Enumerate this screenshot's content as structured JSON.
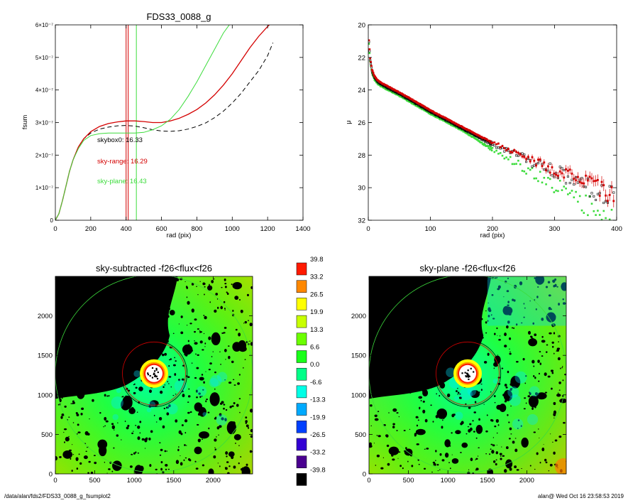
{
  "chart_data": [
    {
      "type": "line",
      "title": "FDS33_0088_g",
      "xlabel": "rad (pix)",
      "ylabel": "fsum",
      "xlim": [
        0,
        1400
      ],
      "ylim": [
        0,
        6e-07
      ],
      "xticks": [
        0,
        200,
        400,
        600,
        800,
        1000,
        1200,
        1400
      ],
      "xtick_labels": [
        "0",
        "200",
        "400",
        "600",
        "800",
        "1000",
        "1200",
        "1400"
      ],
      "yticks": [
        0,
        1e-07,
        2e-07,
        3e-07,
        4e-07,
        5e-07,
        6e-07
      ],
      "ytick_labels": [
        "0",
        "1×10⁻⁷",
        "2×10⁻⁷",
        "3×10⁻⁷",
        "4×10⁻⁷",
        "5×10⁻⁷",
        "6×10⁻⁷"
      ],
      "series": [
        {
          "color": "#000000",
          "dash": true,
          "x": [
            0,
            20,
            40,
            60,
            80,
            100,
            130,
            160,
            200,
            250,
            300,
            350,
            400,
            450,
            500,
            550,
            600,
            650,
            700,
            750,
            800,
            850,
            900,
            950,
            1000,
            1050,
            1100,
            1150,
            1200,
            1230
          ],
          "y": [
            0,
            2e-08,
            6e-08,
            1.05e-07,
            1.5e-07,
            1.85e-07,
            2.25e-07,
            2.5e-07,
            2.68e-07,
            2.8e-07,
            2.86e-07,
            2.9e-07,
            2.91e-07,
            2.89e-07,
            2.84e-07,
            2.78e-07,
            2.74e-07,
            2.73e-07,
            2.75e-07,
            2.8e-07,
            2.88e-07,
            2.99e-07,
            3.15e-07,
            3.35e-07,
            3.6e-07,
            3.9e-07,
            4.25e-07,
            4.6e-07,
            5.05e-07,
            5.45e-07
          ]
        },
        {
          "color": "#d40000",
          "dash": false,
          "x": [
            0,
            20,
            40,
            60,
            80,
            100,
            130,
            160,
            200,
            250,
            300,
            350,
            400,
            450,
            500,
            550,
            600,
            650,
            700,
            750,
            800,
            850,
            900,
            950,
            1000,
            1050,
            1100,
            1150,
            1200,
            1220
          ],
          "y": [
            0,
            2e-08,
            6e-08,
            1.05e-07,
            1.5e-07,
            1.85e-07,
            2.25e-07,
            2.5e-07,
            2.72e-07,
            2.88e-07,
            2.97e-07,
            3.02e-07,
            3.05e-07,
            3.05e-07,
            3.03e-07,
            3e-07,
            3e-07,
            3.05e-07,
            3.13e-07,
            3.25e-07,
            3.4e-07,
            3.6e-07,
            3.85e-07,
            4.15e-07,
            4.5e-07,
            4.9e-07,
            5.3e-07,
            5.65e-07,
            5.95e-07,
            6.05e-07
          ]
        },
        {
          "color": "#3cdc3c",
          "dash": false,
          "x": [
            0,
            20,
            40,
            60,
            80,
            100,
            130,
            160,
            200,
            250,
            300,
            350,
            400,
            450,
            500,
            550,
            600,
            650,
            700,
            750,
            800,
            850,
            900,
            950,
            990
          ],
          "y": [
            0,
            2e-08,
            6e-08,
            1.05e-07,
            1.5e-07,
            1.85e-07,
            2.2e-07,
            2.45e-07,
            2.6e-07,
            2.66e-07,
            2.68e-07,
            2.68e-07,
            2.68e-07,
            2.68e-07,
            2.7e-07,
            2.78e-07,
            2.9e-07,
            3.1e-07,
            3.4e-07,
            3.8e-07,
            4.25e-07,
            4.75e-07,
            5.25e-07,
            5.75e-07,
            6.05e-07
          ]
        }
      ],
      "vlines": [
        {
          "x": 400,
          "color": "#d40000"
        },
        {
          "x": 412,
          "color": "#d40000"
        },
        {
          "x": 458,
          "color": "#3cdc3c"
        }
      ],
      "annotations": [
        {
          "text": "skybox0: 16.33",
          "color": "#000000"
        },
        {
          "text": "sky-range: 16.29",
          "color": "#d40000"
        },
        {
          "text": "sky-plane: 16.43",
          "color": "#3cdc3c"
        }
      ]
    },
    {
      "type": "scatter",
      "title": "",
      "xlabel": "rad (pix)",
      "ylabel": "μ",
      "xlim": [
        0,
        400
      ],
      "ylim": [
        32,
        20
      ],
      "xticks": [
        0,
        100,
        200,
        300,
        400
      ],
      "yticks": [
        20,
        22,
        24,
        26,
        28,
        30,
        32
      ],
      "profile": [
        [
          1,
          21.0
        ],
        [
          3,
          22.1
        ],
        [
          6,
          22.8
        ],
        [
          10,
          23.2
        ],
        [
          15,
          23.45
        ],
        [
          20,
          23.6
        ],
        [
          30,
          23.8
        ],
        [
          50,
          24.2
        ],
        [
          80,
          24.85
        ],
        [
          100,
          25.3
        ],
        [
          130,
          25.9
        ],
        [
          160,
          26.5
        ],
        [
          190,
          27.1
        ],
        [
          220,
          27.6
        ],
        [
          260,
          28.3
        ],
        [
          300,
          29.0
        ],
        [
          340,
          29.7
        ],
        [
          380,
          30.4
        ],
        [
          400,
          30.8
        ]
      ],
      "series": [
        {
          "name": "",
          "color": "#d40000"
        },
        {
          "name": "",
          "color": "#000000"
        },
        {
          "name": "",
          "color": "#3cdc3c"
        }
      ]
    },
    {
      "type": "heatmap",
      "title": "sky-subtracted -f26<flux<f26",
      "xlim": [
        0,
        2500
      ],
      "ylim": [
        0,
        2500
      ],
      "xticks": [
        0,
        500,
        1000,
        1500,
        2000
      ],
      "yticks": [
        0,
        500,
        1000,
        1500,
        2000
      ],
      "center": [
        1250,
        1270
      ],
      "circles": [
        {
          "r": 1250,
          "color": "#3cdc3c"
        },
        {
          "r": 420,
          "color": "#000000"
        },
        {
          "r": 400,
          "color": "#d40000"
        }
      ]
    },
    {
      "type": "heatmap",
      "title": "sky-plane -f26<flux<f26",
      "xlim": [
        0,
        2500
      ],
      "ylim": [
        0,
        2500
      ],
      "xticks": [
        0,
        500,
        1000,
        1500,
        2000
      ],
      "yticks": [
        0,
        500,
        1000,
        1500,
        2000
      ],
      "center": [
        1250,
        1270
      ],
      "circles": [
        {
          "r": 1250,
          "color": "#3cdc3c"
        },
        {
          "r": 420,
          "color": "#000000"
        },
        {
          "r": 400,
          "color": "#d40000"
        }
      ]
    }
  ],
  "colorbar": {
    "labels": [
      "39.8",
      "33.2",
      "26.5",
      "19.9",
      "13.3",
      "6.6",
      "0.0",
      "-6.6",
      "-13.3",
      "-19.9",
      "-26.5",
      "-33.2",
      "-39.8"
    ],
    "colors": [
      "#ff1a00",
      "#ff8800",
      "#ffff00",
      "#c8ff00",
      "#6cff00",
      "#19ff19",
      "#00ff88",
      "#00ffe6",
      "#00aaff",
      "#0040ff",
      "#3300d4",
      "#4a0090",
      "#000000"
    ]
  },
  "footer": {
    "left": "/data/alan/fds2/FDS33_0088_g_fsumplot2",
    "right": "alan@  Wed Oct 16 23:58:53 2019"
  }
}
